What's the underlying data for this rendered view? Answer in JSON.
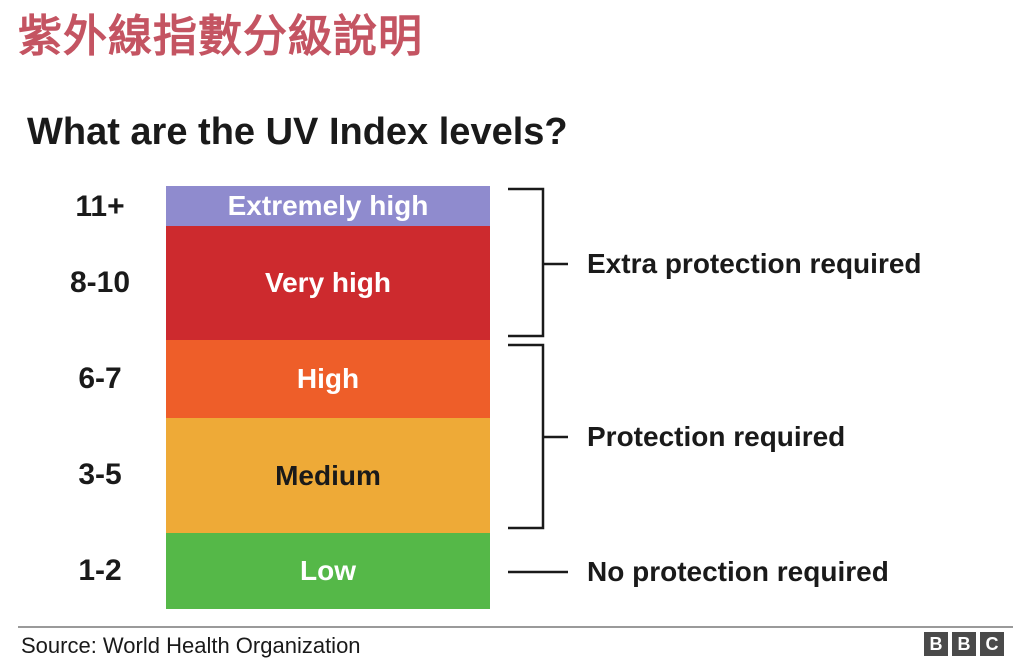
{
  "header": {
    "cn_title": "紫外線指數分級說明",
    "en_title": "What are the UV Index levels?"
  },
  "levels": [
    {
      "range": "11+",
      "label": "Extremely high",
      "color": "#8f8bce",
      "text_color": "#ffffff"
    },
    {
      "range": "8-10",
      "label": "Very high",
      "color": "#cd2a2e",
      "text_color": "#ffffff"
    },
    {
      "range": "6-7",
      "label": "High",
      "color": "#ee5e29",
      "text_color": "#ffffff"
    },
    {
      "range": "3-5",
      "label": "Medium",
      "color": "#eeaa37",
      "text_color": "#1a1a1a"
    },
    {
      "range": "1-2",
      "label": "Low",
      "color": "#55b848",
      "text_color": "#ffffff"
    }
  ],
  "groups": [
    {
      "label": "Extra protection required",
      "covers": [
        "11+",
        "8-10"
      ]
    },
    {
      "label": "Protection required",
      "covers": [
        "6-7",
        "3-5"
      ]
    },
    {
      "label": "No protection required",
      "covers": [
        "1-2"
      ]
    }
  ],
  "footer": {
    "source": "Source: World Health Organization",
    "logo_letters": [
      "B",
      "B",
      "C"
    ]
  }
}
